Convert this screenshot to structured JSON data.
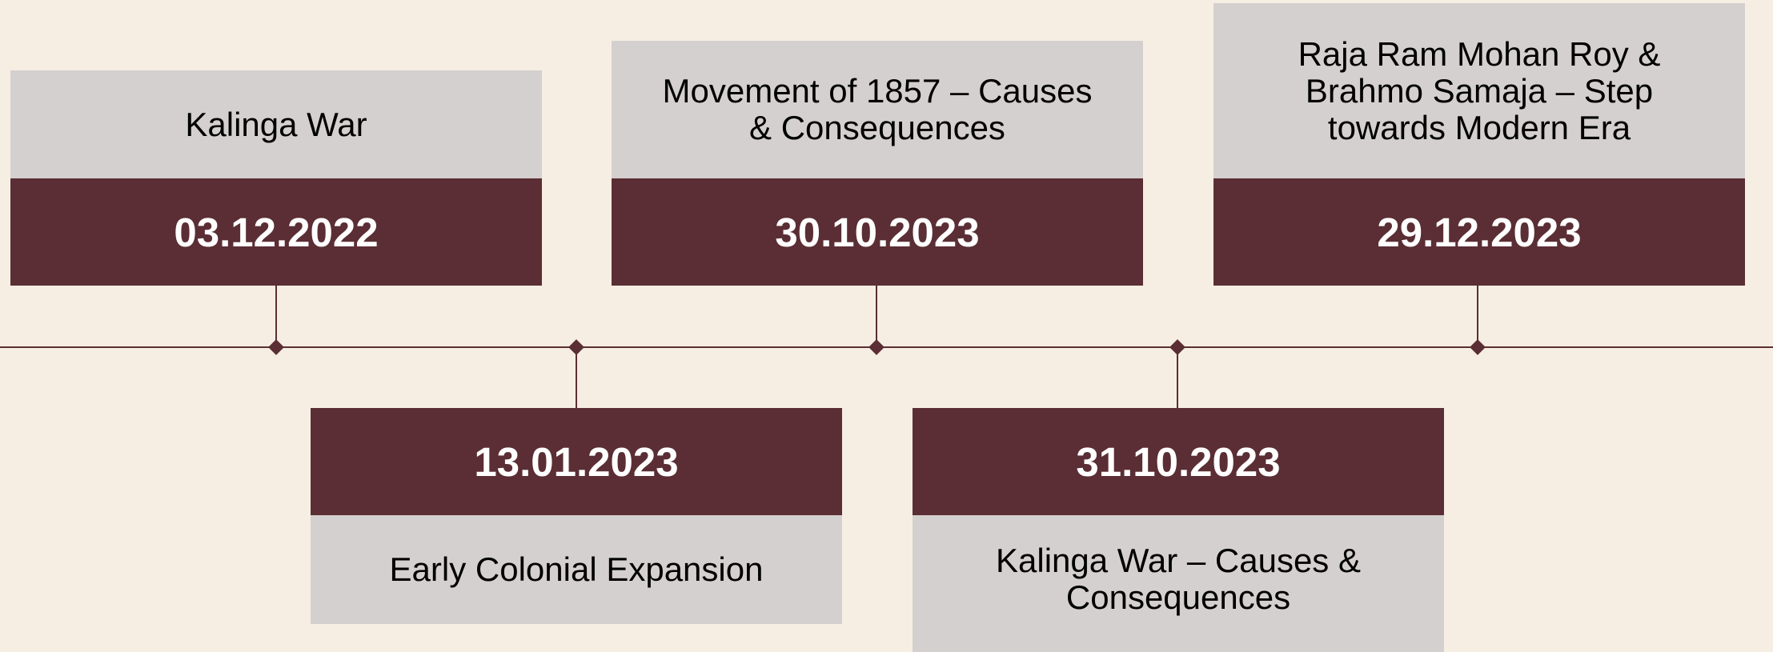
{
  "events": [
    {
      "date": "03.12.2022",
      "title": "Kalinga War"
    },
    {
      "date": "13.01.2023",
      "title": "Early Colonial Expansion"
    },
    {
      "date": "30.10.2023",
      "title": "Movement of 1857 – Causes & Consequences"
    },
    {
      "date": "31.10.2023",
      "title": "Kalinga War – Causes & Consequences"
    },
    {
      "date": "29.12.2023",
      "title": "Raja Ram Mohan Roy & Brahmo Samaja – Step towards Modern Era"
    }
  ]
}
